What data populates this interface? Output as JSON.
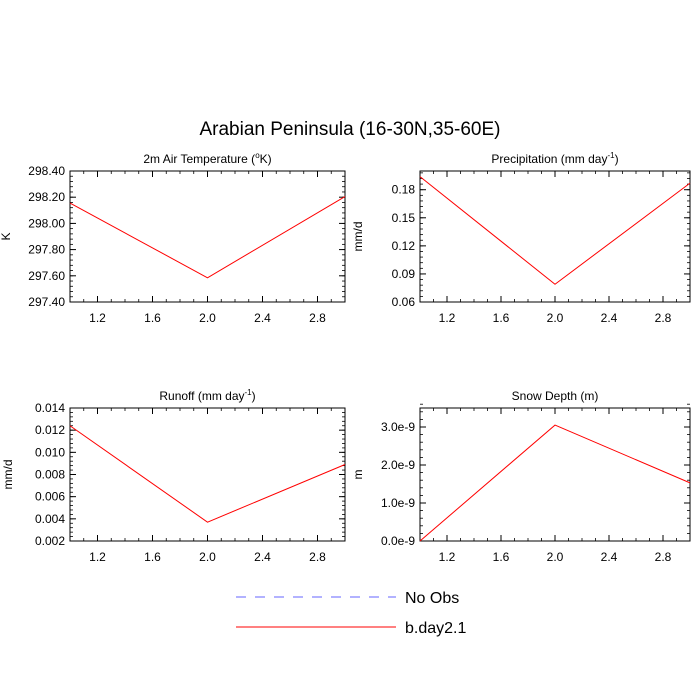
{
  "figure": {
    "title": "Arabian Peninsula (16-30N,35-60E)"
  },
  "legend": {
    "placement": "bottom-center",
    "entries": [
      {
        "label": "No Obs",
        "color": "#6666ff",
        "style": "dashed"
      },
      {
        "label": "b.day2.1",
        "color": "#ff0000",
        "style": "solid"
      }
    ]
  },
  "chart_data": [
    {
      "type": "line",
      "title_main": "2m Air Temperature (",
      "title_sup": "o",
      "title_tail": "K)",
      "ylabel": "K",
      "xlim": [
        1.0,
        3.0
      ],
      "ylim": [
        297.4,
        298.4
      ],
      "x_ticks": [
        1.2,
        1.6,
        2.0,
        2.4,
        2.8
      ],
      "x_tick_labels": [
        "1.2",
        "1.6",
        "2.0",
        "2.4",
        "2.8"
      ],
      "y_ticks": [
        297.4,
        297.6,
        297.8,
        298.0,
        298.2,
        298.4
      ],
      "y_tick_labels": [
        "297.40",
        "297.60",
        "297.80",
        "298.00",
        "298.20",
        "298.40"
      ],
      "series": [
        {
          "name": "b.day2.1",
          "color": "#ff0000",
          "x": [
            1,
            2,
            3
          ],
          "y": [
            298.155,
            297.585,
            298.205
          ]
        }
      ]
    },
    {
      "type": "line",
      "title_main": "Precipitation (mm day",
      "title_sup": "-1",
      "title_tail": ")",
      "ylabel": "mm/d",
      "xlim": [
        1.0,
        3.0
      ],
      "ylim": [
        0.06,
        0.2
      ],
      "x_ticks": [
        1.2,
        1.6,
        2.0,
        2.4,
        2.8
      ],
      "x_tick_labels": [
        "1.2",
        "1.6",
        "2.0",
        "2.4",
        "2.8"
      ],
      "y_ticks": [
        0.06,
        0.09,
        0.12,
        0.15,
        0.18
      ],
      "y_tick_labels": [
        "0.06",
        "0.09",
        "0.12",
        "0.15",
        "0.18"
      ],
      "series": [
        {
          "name": "b.day2.1",
          "color": "#ff0000",
          "x": [
            1,
            2,
            3
          ],
          "y": [
            0.194,
            0.079,
            0.187
          ]
        }
      ]
    },
    {
      "type": "line",
      "title_main": "Runoff (mm day",
      "title_sup": "-1",
      "title_tail": ")",
      "ylabel": "mm/d",
      "xlim": [
        1.0,
        3.0
      ],
      "ylim": [
        0.002,
        0.014
      ],
      "x_ticks": [
        1.2,
        1.6,
        2.0,
        2.4,
        2.8
      ],
      "x_tick_labels": [
        "1.2",
        "1.6",
        "2.0",
        "2.4",
        "2.8"
      ],
      "y_ticks": [
        0.002,
        0.004,
        0.006,
        0.008,
        0.01,
        0.012,
        0.014
      ],
      "y_tick_labels": [
        "0.002",
        "0.004",
        "0.006",
        "0.008",
        "0.010",
        "0.012",
        "0.014"
      ],
      "series": [
        {
          "name": "b.day2.1",
          "color": "#ff0000",
          "x": [
            1,
            2,
            3
          ],
          "y": [
            0.0124,
            0.0037,
            0.0089
          ]
        }
      ]
    },
    {
      "type": "line",
      "title_main": "Snow Depth (m)",
      "title_sup": "",
      "title_tail": "",
      "ylabel": "m",
      "xlim": [
        1.0,
        3.0
      ],
      "ylim": [
        0.0,
        3.5e-09
      ],
      "x_ticks": [
        1.2,
        1.6,
        2.0,
        2.4,
        2.8
      ],
      "x_tick_labels": [
        "1.2",
        "1.6",
        "2.0",
        "2.4",
        "2.8"
      ],
      "y_ticks": [
        0.0,
        1e-09,
        2e-09,
        3e-09
      ],
      "y_tick_labels": [
        "0.0e-9",
        "1.0e-9",
        "2.0e-9",
        "3.0e-9"
      ],
      "series": [
        {
          "name": "b.day2.1",
          "color": "#ff0000",
          "x": [
            1,
            2,
            3
          ],
          "y": [
            0.0,
            3.05e-09,
            1.53e-09
          ]
        }
      ]
    }
  ]
}
